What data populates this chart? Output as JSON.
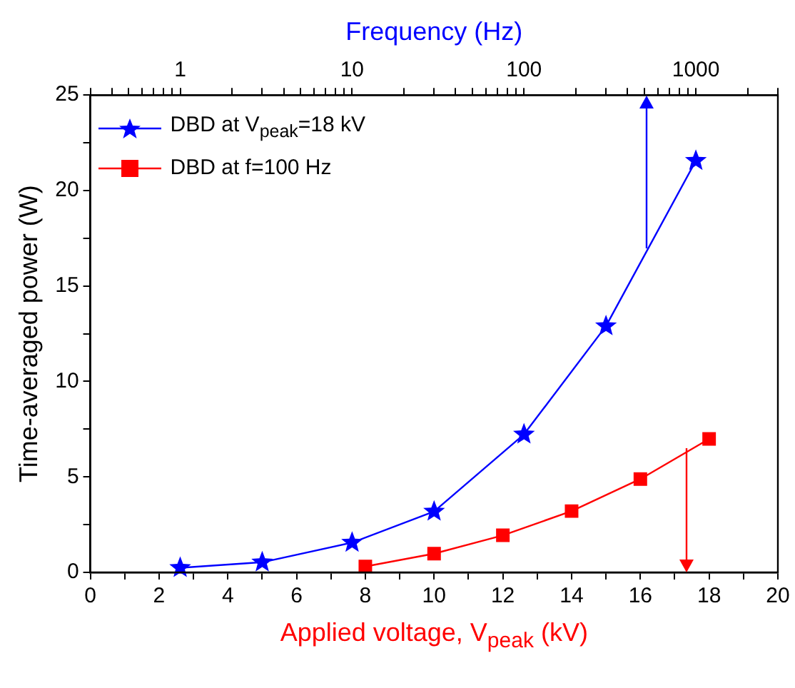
{
  "chart_data": {
    "type": "line",
    "xlabel": "Applied voltage, V$_{peak}$ (kV)",
    "x2label": "Frequency (Hz)",
    "ylabel": "Time-averaged power (W)",
    "xlim": [
      0,
      20
    ],
    "xticks": [
      0,
      {
        "value": 1,
        "label": null
      },
      2,
      {
        "value": 3,
        "label": null
      },
      4,
      {
        "value": 5,
        "label": null
      },
      6,
      {
        "value": 7,
        "label": null
      },
      8,
      {
        "value": 9,
        "label": null
      },
      10,
      {
        "value": 11,
        "label": null
      },
      12,
      {
        "value": 13,
        "label": null
      },
      14,
      {
        "value": 15,
        "label": null
      },
      16,
      {
        "value": 17,
        "label": null
      },
      18,
      {
        "value": 19,
        "label": null
      },
      20
    ],
    "x2lim": [
      0.3,
      3000
    ],
    "x2ticks": [
      {
        "value": 0.3,
        "label": null
      },
      {
        "value": 0.4,
        "label": null
      },
      {
        "value": 0.5,
        "label": null
      },
      {
        "value": 0.6,
        "label": null
      },
      {
        "value": 0.7,
        "label": null
      },
      {
        "value": 0.8,
        "label": null
      },
      {
        "value": 0.9,
        "label": null
      },
      1,
      {
        "value": 2,
        "label": null
      },
      {
        "value": 3,
        "label": null
      },
      {
        "value": 4,
        "label": null
      },
      {
        "value": 5,
        "label": null
      },
      {
        "value": 6,
        "label": null
      },
      {
        "value": 7,
        "label": null
      },
      {
        "value": 8,
        "label": null
      },
      {
        "value": 9,
        "label": null
      },
      10,
      {
        "value": 20,
        "label": null
      },
      {
        "value": 30,
        "label": null
      },
      {
        "value": 40,
        "label": null
      },
      {
        "value": 50,
        "label": null
      },
      {
        "value": 60,
        "label": null
      },
      {
        "value": 70,
        "label": null
      },
      {
        "value": 80,
        "label": null
      },
      {
        "value": 90,
        "label": null
      },
      100,
      {
        "value": 200,
        "label": null
      },
      {
        "value": 300,
        "label": null
      },
      {
        "value": 400,
        "label": null
      },
      {
        "value": 500,
        "label": null
      },
      {
        "value": 600,
        "label": null
      },
      {
        "value": 700,
        "label": null
      },
      {
        "value": 800,
        "label": null
      },
      {
        "value": 900,
        "label": null
      },
      1000,
      {
        "value": 2000,
        "label": null
      },
      {
        "value": 3000,
        "label": null
      }
    ],
    "ylim": [
      0,
      25
    ],
    "yticks": [
      0,
      {
        "value": 2.5,
        "label": null
      },
      5,
      {
        "value": 7.5,
        "label": null
      },
      10,
      {
        "value": 12.5,
        "label": null
      },
      15,
      {
        "value": 17.5,
        "label": null
      },
      20,
      {
        "value": 22.5,
        "label": null
      },
      25
    ],
    "log": "x2",
    "grid": false,
    "legend": "top left",
    "line_style": "solid",
    "series": [
      {
        "name": "DBD at V$_{peak}$=18 kV",
        "color": "#0000ff",
        "axis": "x2",
        "marker": "star",
        "x": [
          1,
          3,
          10,
          30,
          100,
          300,
          1000
        ],
        "values": [
          0.24,
          0.53,
          1.56,
          3.19,
          7.23,
          12.9,
          21.56
        ]
      },
      {
        "name": "DBD at f=100 Hz",
        "color": "#ff0000",
        "marker": "square",
        "x": [
          8,
          10,
          12,
          14,
          16,
          18
        ],
        "values": [
          0.31,
          0.98,
          1.94,
          3.21,
          4.89,
          6.99
        ]
      }
    ]
  }
}
